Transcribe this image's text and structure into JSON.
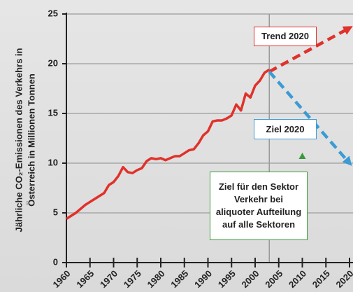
{
  "chart_data": {
    "type": "line",
    "y_label": [
      "Jährliche CO₂-Emissionen des Verkehrs in",
      "Österreich in Millionen Tonnen"
    ],
    "xlim": [
      1960,
      2020
    ],
    "xticks": [
      1960,
      1965,
      1970,
      1975,
      1980,
      1985,
      1990,
      1995,
      2000,
      2005,
      2010,
      2015,
      2020
    ],
    "ylim": [
      0,
      25
    ],
    "yticks": [
      0,
      5,
      10,
      15,
      20,
      25
    ],
    "grid": true,
    "vline_x": 2003,
    "series": [
      {
        "color": "#e0312a",
        "x": [
          1960,
          1962,
          1964,
          1966,
          1968,
          1969,
          1970,
          1971,
          1972,
          1973,
          1974,
          1975,
          1976,
          1977,
          1978,
          1979,
          1980,
          1981,
          1982,
          1983,
          1984,
          1985,
          1986,
          1987,
          1988,
          1989,
          1990,
          1991,
          1992,
          1993,
          1994,
          1995,
          1996,
          1997,
          1998,
          1999,
          2000,
          2001,
          2002,
          2003
        ],
        "values": [
          4.4,
          5.0,
          5.8,
          6.4,
          7.0,
          7.8,
          8.1,
          8.7,
          9.6,
          9.1,
          9.0,
          9.3,
          9.5,
          10.2,
          10.5,
          10.4,
          10.5,
          10.3,
          10.5,
          10.7,
          10.7,
          11.0,
          11.3,
          11.4,
          12.0,
          12.8,
          13.2,
          14.2,
          14.3,
          14.3,
          14.5,
          14.8,
          15.9,
          15.3,
          17.0,
          16.6,
          17.8,
          18.3,
          19.1,
          19.4
        ]
      },
      {
        "name": "Trend 2020",
        "color": "#e0312a",
        "dashed": true,
        "x": [
          2003,
          2020
        ],
        "values": [
          19.2,
          23.6
        ]
      },
      {
        "name": "Ziel 2020",
        "color": "#3b9bd4",
        "dashed": true,
        "x": [
          2003,
          2020
        ],
        "values": [
          19.2,
          10.0
        ]
      },
      {
        "name": "Ziel für den Sektor Verkehr bei aliquoter Aufteilung auf alle Sektoren",
        "color": "#3a9a3a",
        "marker": "triangle",
        "x": [
          2010
        ],
        "values": [
          10.7
        ]
      }
    ]
  }
}
